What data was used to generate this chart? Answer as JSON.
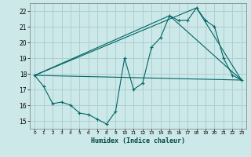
{
  "xlabel": "Humidex (Indice chaleur)",
  "bg_color": "#cde8e8",
  "grid_color": "#aad0d0",
  "line_color": "#006666",
  "xlim": [
    -0.5,
    23.5
  ],
  "ylim": [
    14.5,
    22.5
  ],
  "yticks": [
    15,
    16,
    17,
    18,
    19,
    20,
    21,
    22
  ],
  "xticks": [
    0,
    1,
    2,
    3,
    4,
    5,
    6,
    7,
    8,
    9,
    10,
    11,
    12,
    13,
    14,
    15,
    16,
    17,
    18,
    19,
    20,
    21,
    22,
    23
  ],
  "line1_x": [
    0,
    1,
    2,
    3,
    4,
    5,
    6,
    7,
    8,
    9,
    10,
    11,
    12,
    13,
    14,
    15,
    16,
    17,
    18,
    19,
    20,
    21,
    22,
    23
  ],
  "line1_y": [
    17.9,
    17.2,
    16.1,
    16.2,
    16.0,
    15.5,
    15.4,
    15.1,
    14.8,
    15.6,
    19.0,
    17.0,
    17.4,
    19.7,
    20.3,
    21.7,
    21.4,
    21.4,
    22.2,
    21.4,
    21.0,
    19.0,
    17.9,
    17.6
  ],
  "line2_x": [
    0,
    23
  ],
  "line2_y": [
    17.9,
    17.6
  ],
  "line3_x": [
    0,
    18,
    23
  ],
  "line3_y": [
    17.9,
    22.2,
    17.6
  ],
  "line4_x": [
    0,
    15,
    23
  ],
  "line4_y": [
    17.9,
    21.7,
    17.6
  ]
}
